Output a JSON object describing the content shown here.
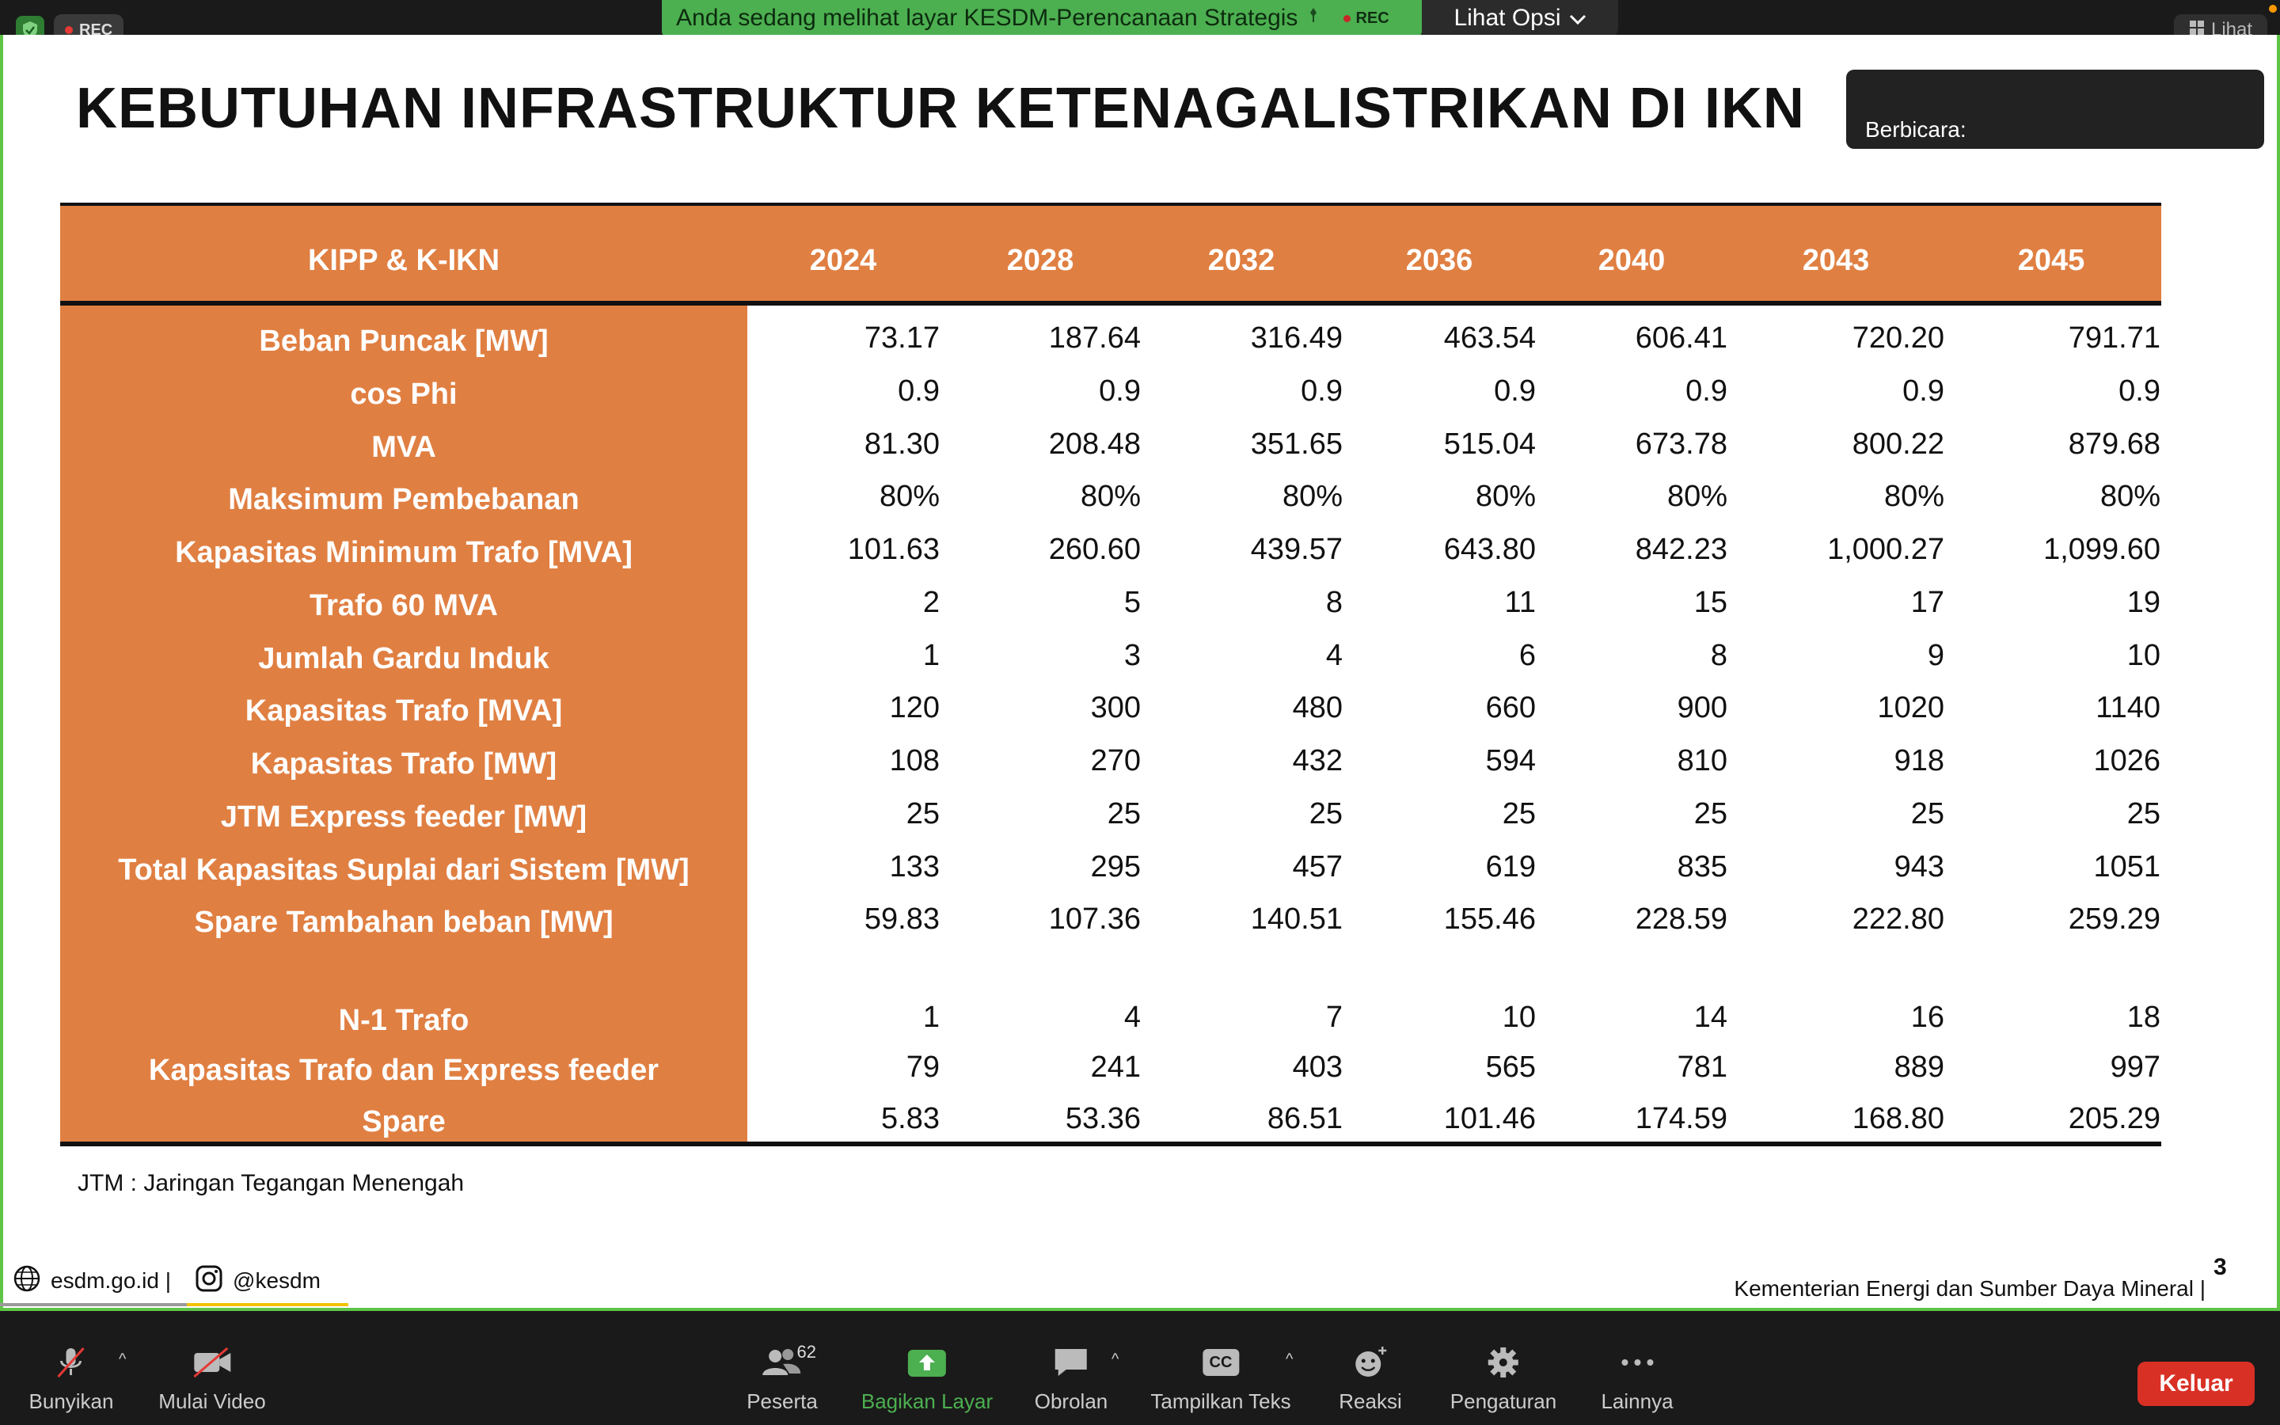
{
  "topbar": {
    "rec_label": "REC",
    "banner_text": "Anda sedang melihat layar KESDM-Perencanaan Strategis",
    "banner_rec": "REC",
    "view_options": "Lihat Opsi",
    "view_right": "Lihat"
  },
  "slide": {
    "title": "KEBUTUHAN INFRASTRUKTUR KETENAGALISTRIKAN DI IKN",
    "speaker_label": "Berbicara:",
    "table": {
      "corner_header": "KIPP & K-IKN",
      "years": [
        "2024",
        "2028",
        "2032",
        "2036",
        "2040",
        "2043",
        "2045"
      ],
      "rows": [
        {
          "label": "Beban Puncak [MW]",
          "values": [
            "73.17",
            "187.64",
            "316.49",
            "463.54",
            "606.41",
            "720.20",
            "791.71"
          ]
        },
        {
          "label": "cos Phi",
          "values": [
            "0.9",
            "0.9",
            "0.9",
            "0.9",
            "0.9",
            "0.9",
            "0.9"
          ]
        },
        {
          "label": "MVA",
          "values": [
            "81.30",
            "208.48",
            "351.65",
            "515.04",
            "673.78",
            "800.22",
            "879.68"
          ]
        },
        {
          "label": "Maksimum Pembebanan",
          "values": [
            "80%",
            "80%",
            "80%",
            "80%",
            "80%",
            "80%",
            "80%"
          ]
        },
        {
          "label": "Kapasitas Minimum Trafo [MVA]",
          "values": [
            "101.63",
            "260.60",
            "439.57",
            "643.80",
            "842.23",
            "1,000.27",
            "1,099.60"
          ]
        },
        {
          "label": "Trafo 60 MVA",
          "values": [
            "2",
            "5",
            "8",
            "11",
            "15",
            "17",
            "19"
          ]
        },
        {
          "label": "Jumlah Gardu Induk",
          "values": [
            "1",
            "3",
            "4",
            "6",
            "8",
            "9",
            "10"
          ]
        },
        {
          "label": "Kapasitas Trafo [MVA]",
          "values": [
            "120",
            "300",
            "480",
            "660",
            "900",
            "1020",
            "1140"
          ]
        },
        {
          "label": "Kapasitas Trafo [MW]",
          "values": [
            "108",
            "270",
            "432",
            "594",
            "810",
            "918",
            "1026"
          ]
        },
        {
          "label": "JTM Express feeder [MW]",
          "values": [
            "25",
            "25",
            "25",
            "25",
            "25",
            "25",
            "25"
          ]
        },
        {
          "label": "Total Kapasitas Suplai dari Sistem [MW]",
          "values": [
            "133",
            "295",
            "457",
            "619",
            "835",
            "943",
            "1051"
          ]
        },
        {
          "label": "Spare Tambahan beban [MW]",
          "values": [
            "59.83",
            "107.36",
            "140.51",
            "155.46",
            "228.59",
            "222.80",
            "259.29"
          ]
        },
        {
          "label": "N-1 Trafo",
          "values": [
            "1",
            "4",
            "7",
            "10",
            "14",
            "16",
            "18"
          ]
        },
        {
          "label": "Kapasitas Trafo dan Express feeder",
          "values": [
            "79",
            "241",
            "403",
            "565",
            "781",
            "889",
            "997"
          ]
        },
        {
          "label": "Spare",
          "values": [
            "5.83",
            "53.36",
            "86.51",
            "101.46",
            "174.59",
            "168.80",
            "205.29"
          ]
        }
      ]
    },
    "footnote": "JTM : Jaringan Tegangan Menengah",
    "footer_site": "esdm.go.id |",
    "footer_social": "@kesdm",
    "footer_org": "Kementerian Energi dan Sumber Daya Mineral |",
    "page_number": "3"
  },
  "toolbar": {
    "unmute": "Bunyikan",
    "start_video": "Mulai Video",
    "participants": "Peserta",
    "participants_count": "62",
    "share_screen": "Bagikan Layar",
    "chat": "Obrolan",
    "captions": "Tampilkan Teks",
    "captions_icon_text": "CC",
    "reactions": "Reaksi",
    "settings": "Pengaturan",
    "more": "Lainnya",
    "leave": "Keluar"
  },
  "colors": {
    "table_orange": "#e07f42",
    "frame_green": "#5ec446",
    "leave_red": "#d93025"
  }
}
